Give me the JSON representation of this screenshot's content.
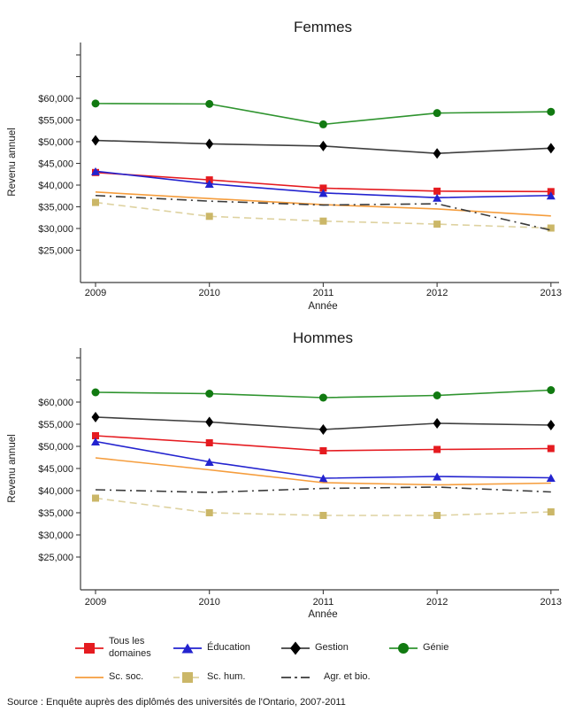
{
  "source_note": "Source : Enquête auprès des diplômés des universités de l'Ontario, 2007-2011",
  "legend": {
    "items": [
      {
        "label": "Tous les domaines"
      },
      {
        "label": "Éducation"
      },
      {
        "label": "Gestion"
      },
      {
        "label": "Génie"
      },
      {
        "label": "Sc. soc."
      },
      {
        "label": "Sc. hum."
      },
      {
        "label": "Agr. et bio."
      }
    ]
  },
  "chart_data": [
    {
      "type": "line",
      "title": "Femmes",
      "xlabel": "Année",
      "ylabel": "Revenu annuel",
      "x": [
        2009,
        2010,
        2011,
        2012,
        2013
      ],
      "ylim": [
        17500,
        73000
      ],
      "yticks": [
        25000,
        30000,
        35000,
        40000,
        45000,
        50000,
        55000,
        60000
      ],
      "ytick_labels": [
        "$25,000",
        "$30,000",
        "$35,000",
        "$40,000",
        "$45,000",
        "$50,000",
        "$55,000",
        "$60,000"
      ],
      "grid": false,
      "legend_position": "bottom-shared",
      "series": [
        {
          "name": "Tous les domaines",
          "values": [
            42900,
            41200,
            39300,
            38600,
            38500
          ],
          "color": "#e51b20",
          "marker": "square",
          "dash": "solid"
        },
        {
          "name": "Éducation",
          "values": [
            43200,
            40300,
            38200,
            37100,
            37600
          ],
          "color": "#2323cf",
          "marker": "triangle",
          "dash": "solid"
        },
        {
          "name": "Gestion",
          "values": [
            50300,
            49500,
            49000,
            47300,
            48500
          ],
          "color": "#3f3f3f",
          "marker": "diamond",
          "marker_color": "#000000",
          "dash": "solid"
        },
        {
          "name": "Génie",
          "values": [
            58800,
            58700,
            54000,
            56600,
            56900
          ],
          "color": "#2f942f",
          "marker": "circle",
          "marker_color": "#117a11",
          "dash": "solid"
        },
        {
          "name": "Sc. soc.",
          "values": [
            38400,
            36900,
            35500,
            34500,
            32900
          ],
          "color": "#f59d3d",
          "marker": "none",
          "dash": "solid"
        },
        {
          "name": "Sc. hum.",
          "values": [
            36000,
            32800,
            31700,
            31000,
            30100
          ],
          "color": "#ded2a0",
          "marker": "square",
          "marker_color": "#cbb768",
          "dash": "dashed"
        },
        {
          "name": "Agr. et bio.",
          "values": [
            37600,
            36300,
            35400,
            35700,
            29600
          ],
          "color": "#3a3a3a",
          "marker": "none",
          "dash": "dashdot"
        }
      ]
    },
    {
      "type": "line",
      "title": "Hommes",
      "xlabel": "Année",
      "ylabel": "Revenu annuel",
      "x": [
        2009,
        2010,
        2011,
        2012,
        2013
      ],
      "ylim": [
        17500,
        73000
      ],
      "yticks": [
        25000,
        30000,
        35000,
        40000,
        45000,
        50000,
        55000,
        60000
      ],
      "ytick_labels": [
        "$25,000",
        "$30,000",
        "$35,000",
        "$40,000",
        "$45,000",
        "$50,000",
        "$55,000",
        "$60,000"
      ],
      "grid": false,
      "legend_position": "bottom-shared",
      "series": [
        {
          "name": "Tous les domaines",
          "values": [
            52400,
            50800,
            49000,
            49300,
            49500
          ],
          "color": "#e51b20",
          "marker": "square",
          "dash": "solid"
        },
        {
          "name": "Éducation",
          "values": [
            51100,
            46500,
            42800,
            43200,
            42900
          ],
          "color": "#2323cf",
          "marker": "triangle",
          "dash": "solid"
        },
        {
          "name": "Gestion",
          "values": [
            56600,
            55500,
            53800,
            55200,
            54800
          ],
          "color": "#3f3f3f",
          "marker": "diamond",
          "marker_color": "#000000",
          "dash": "solid"
        },
        {
          "name": "Génie",
          "values": [
            62200,
            61900,
            61000,
            61500,
            62700
          ],
          "color": "#2f942f",
          "marker": "circle",
          "marker_color": "#117a11",
          "dash": "solid"
        },
        {
          "name": "Sc. soc.",
          "values": [
            47400,
            44700,
            41800,
            41300,
            41700
          ],
          "color": "#f59d3d",
          "marker": "none",
          "dash": "solid"
        },
        {
          "name": "Sc. hum.",
          "values": [
            38300,
            35000,
            34400,
            34400,
            35200
          ],
          "color": "#ded2a0",
          "marker": "square",
          "marker_color": "#cbb768",
          "dash": "dashed"
        },
        {
          "name": "Agr. et bio.",
          "values": [
            40200,
            39600,
            40500,
            40800,
            39700
          ],
          "color": "#3a3a3a",
          "marker": "none",
          "dash": "dashdot"
        }
      ]
    }
  ]
}
